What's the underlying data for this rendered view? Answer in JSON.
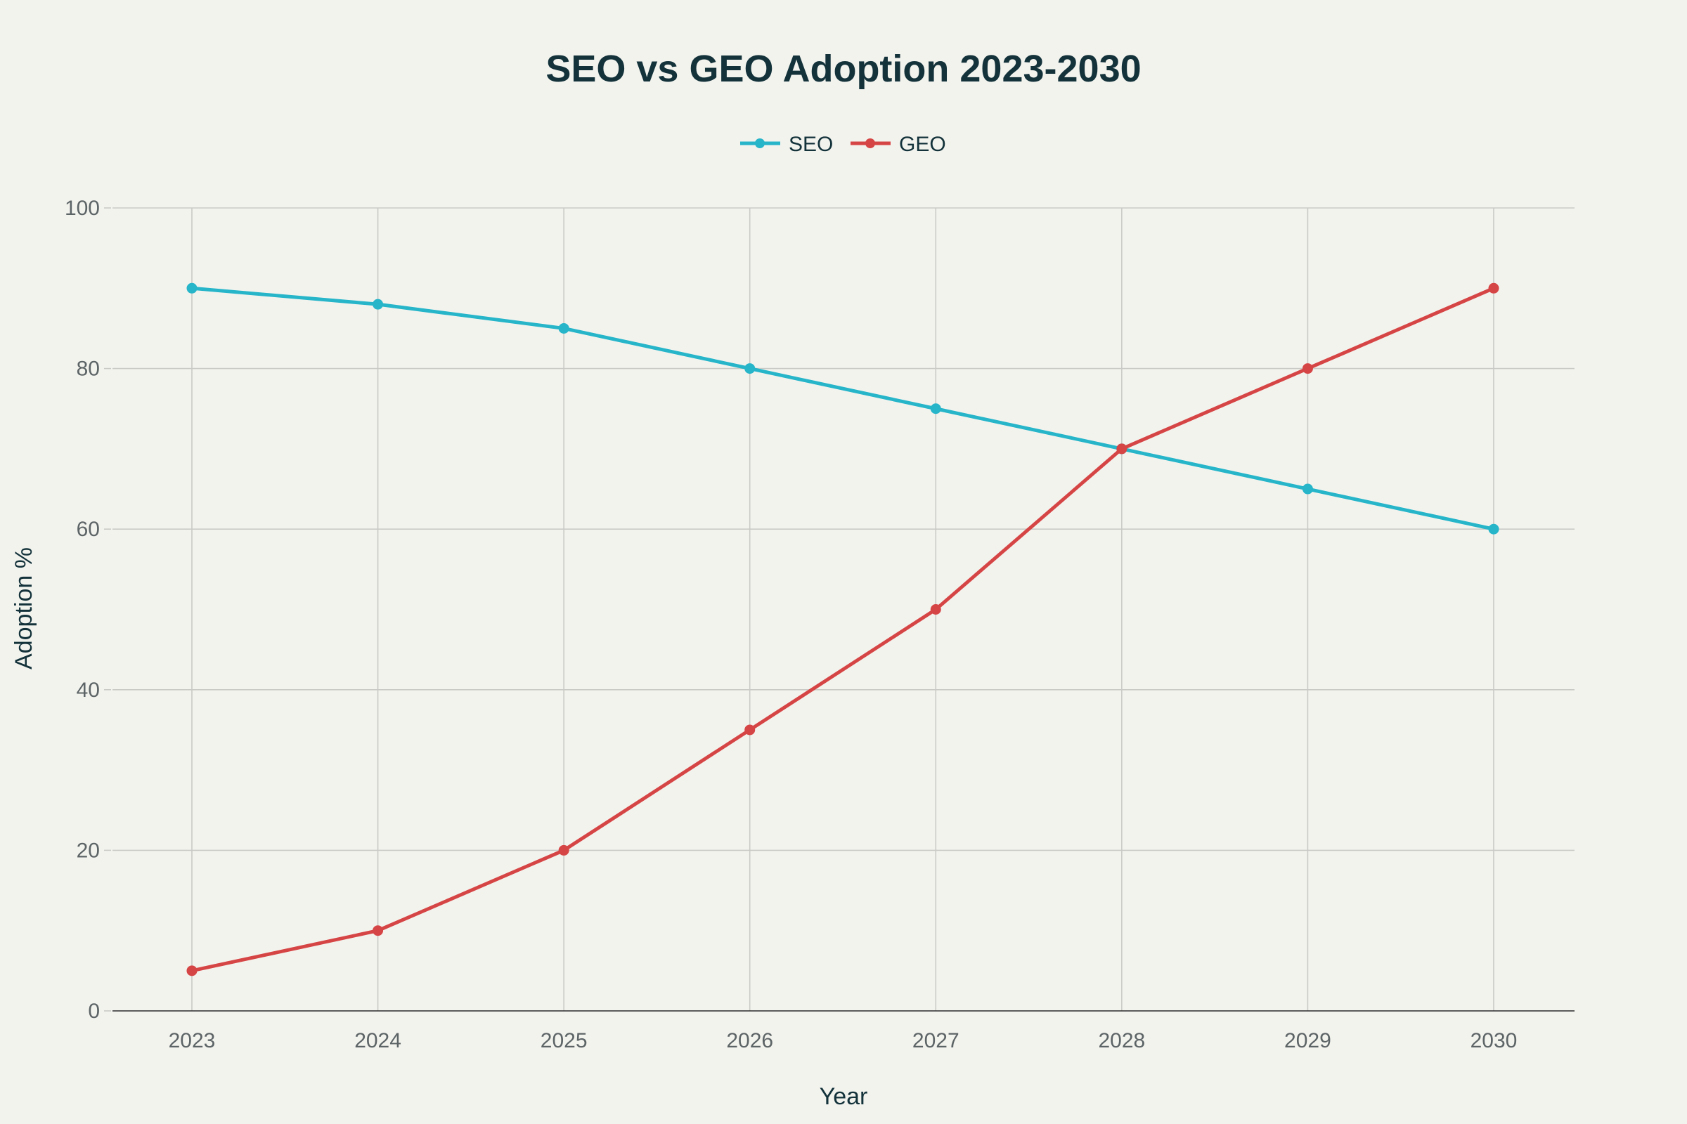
{
  "chart_data": {
    "type": "line",
    "title": "SEO vs GEO Adoption 2023-2030",
    "xlabel": "Year",
    "ylabel": "Adoption %",
    "categories": [
      "2023",
      "2024",
      "2025",
      "2026",
      "2027",
      "2028",
      "2029",
      "2030"
    ],
    "ylim": [
      0,
      100
    ],
    "yticks": [
      0,
      20,
      40,
      60,
      80,
      100
    ],
    "ytick_labels": [
      "0",
      "20",
      "40",
      "60",
      "80",
      "100"
    ],
    "grid": true,
    "legend_position": "top-center",
    "series": [
      {
        "name": "SEO",
        "color": "#26b5c9",
        "values": [
          90,
          88,
          85,
          80,
          75,
          70,
          65,
          60
        ]
      },
      {
        "name": "GEO",
        "color": "#d64545",
        "values": [
          5,
          10,
          20,
          35,
          50,
          70,
          80,
          90
        ]
      }
    ]
  }
}
